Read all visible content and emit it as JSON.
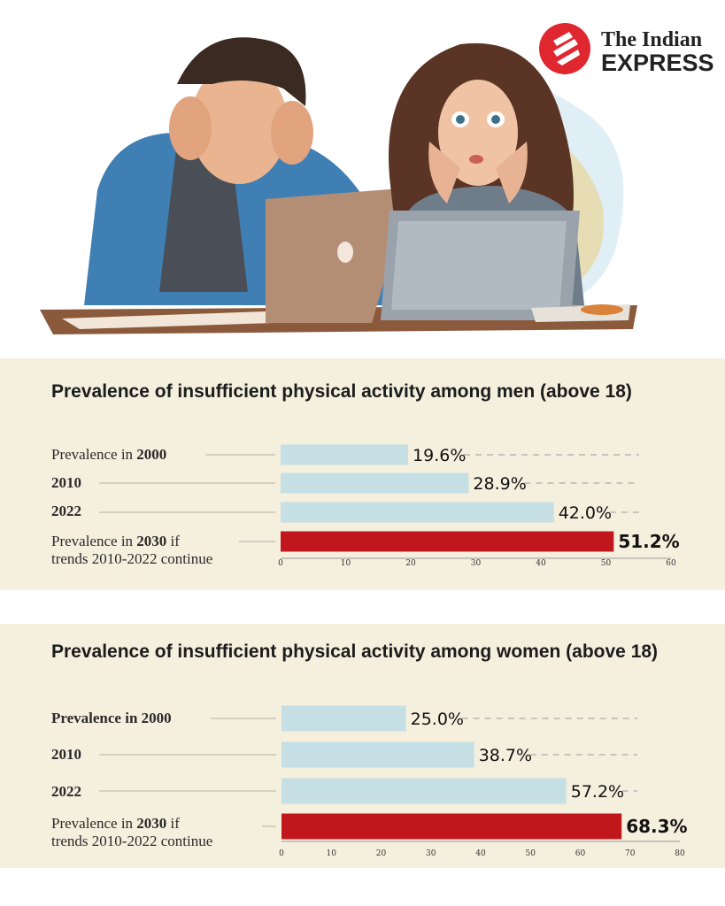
{
  "brand": {
    "logo_line1": "The Indian",
    "logo_line2": "EXPRESS",
    "colors": {
      "accent": "#e0262f",
      "bar": "#c5dfe5",
      "highlight": "#c0171d",
      "panel": "#f5efde"
    }
  },
  "chart_data": [
    {
      "type": "bar",
      "orientation": "horizontal",
      "title": "Prevalence of insufficient physical activity among men (above 18)",
      "categories": [
        "Prevalence in 2000",
        "2010",
        "2022",
        "Prevalence in 2030 if trends 2010-2022 continue"
      ],
      "label_parts": [
        {
          "prefix": "Prevalence in ",
          "bold": "2000",
          "suffix": ""
        },
        {
          "prefix": "",
          "bold": "2010",
          "suffix": ""
        },
        {
          "prefix": "",
          "bold": "2022",
          "suffix": ""
        },
        {
          "prefix": "Prevalence in ",
          "bold": "2030",
          "suffix": " if",
          "line2": "trends 2010-2022 continue"
        }
      ],
      "values": [
        19.6,
        28.9,
        42.0,
        51.2
      ],
      "value_labels": [
        "19.6%",
        "28.9%",
        "42.0%",
        "51.2%"
      ],
      "highlight_index": 3,
      "xlim": [
        0,
        60
      ],
      "xticks": [
        0,
        10,
        20,
        30,
        40,
        50,
        60
      ],
      "legend": "none",
      "grid": false
    },
    {
      "type": "bar",
      "orientation": "horizontal",
      "title": "Prevalence of insufficient physical activity among women (above 18)",
      "categories": [
        "Prevalence in 2000",
        "2010",
        "2022",
        "Prevalence in 2030 if trends 2010-2022 continue"
      ],
      "label_parts": [
        {
          "prefix": "",
          "bold": "Prevalence in 2000",
          "suffix": ""
        },
        {
          "prefix": "",
          "bold": "2010",
          "suffix": ""
        },
        {
          "prefix": "",
          "bold": "2022",
          "suffix": ""
        },
        {
          "prefix": "Prevalence in ",
          "bold": "2030",
          "suffix": " if",
          "line2": "trends 2010-2022 continue"
        }
      ],
      "values": [
        25.0,
        38.7,
        57.2,
        68.3
      ],
      "value_labels": [
        "25.0%",
        "38.7%",
        "57.2%",
        "68.3%"
      ],
      "highlight_index": 3,
      "xlim": [
        0,
        80
      ],
      "xticks": [
        0,
        10,
        20,
        30,
        40,
        50,
        60,
        70,
        80
      ],
      "legend": "none",
      "grid": false
    }
  ]
}
